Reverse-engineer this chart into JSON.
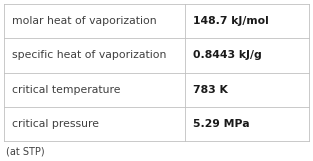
{
  "rows": [
    [
      "molar heat of vaporization",
      "148.7 kJ/mol"
    ],
    [
      "specific heat of vaporization",
      "0.8443 kJ/g"
    ],
    [
      "critical temperature",
      "783 K"
    ],
    [
      "critical pressure",
      "5.29 MPa"
    ]
  ],
  "footnote": "(at STP)",
  "col_split": 0.595,
  "background_color": "#ffffff",
  "border_color": "#c0c0c0",
  "text_color_left": "#404040",
  "text_color_right": "#1a1a1a",
  "font_size_table": 7.8,
  "font_size_footnote": 7.0,
  "figwidth": 3.13,
  "figheight": 1.61,
  "dpi": 100
}
